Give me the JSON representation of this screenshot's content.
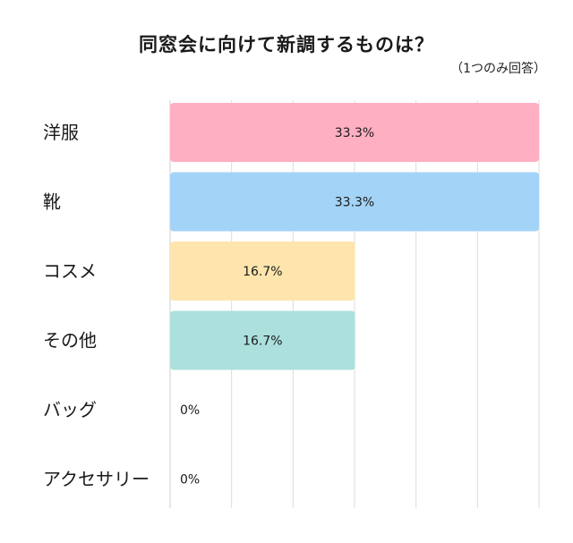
{
  "chart_data": {
    "type": "bar",
    "orientation": "horizontal",
    "title": "同窓会に向けて新調するものは？",
    "subtitle": "（1つのみ回答）",
    "categories": [
      "洋服",
      "靴",
      "コスメ",
      "その他",
      "バッグ",
      "アクセサリー"
    ],
    "values": [
      33.3,
      33.3,
      16.7,
      16.7,
      0,
      0
    ],
    "value_labels": [
      "33.3%",
      "33.3%",
      "16.7%",
      "16.7%",
      "0%",
      "0%"
    ],
    "colors": [
      "#ffafc2",
      "#a3d3f7",
      "#fde5ad",
      "#abe0dd",
      "#cccccc",
      "#cccccc"
    ],
    "xlim": [
      0,
      33.3
    ],
    "grid": true,
    "legend": "none"
  }
}
